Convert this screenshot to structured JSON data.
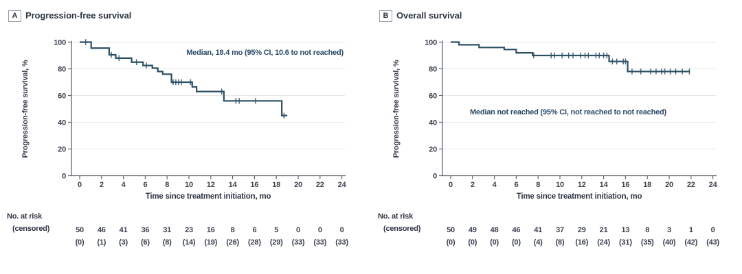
{
  "panels": [
    {
      "label": "A",
      "title": "Progression-free survival",
      "annotation": "Median, 18.4 mo (95% CI, 10.6 to not reached)",
      "x_axis_label": "Time since treatment initiation, mo",
      "y_axis_label": "Progression-free survival, %",
      "risk_header": [
        "No. at risk",
        "(censored)"
      ]
    },
    {
      "label": "B",
      "title": "Overall survival",
      "annotation": "Median not reached (95% CI, not reached to not reached)",
      "x_axis_label": "Time since treatment initiation, mo",
      "y_axis_label": "Progression-free survival, %",
      "risk_header": [
        "No. at risk",
        "(censored)"
      ]
    }
  ],
  "colors": {
    "curve": "#2b4f63",
    "text": "#39414e",
    "label_text": "#2e3643",
    "annotation_text": "#2b4a66",
    "grid": "#e6e6e6",
    "axis": "#5f656e",
    "panel_box_border": "#979da6",
    "background": "#ffffff"
  },
  "chart_data": [
    {
      "type": "line",
      "subtype": "kaplan-meier-step",
      "panel": "A",
      "title": "Progression-free survival",
      "annotation": "Median, 18.4 mo (95% CI, 10.6 to not reached)",
      "xlabel": "Time since treatment initiation, mo",
      "ylabel": "Progression-free survival, %",
      "xlim": [
        0,
        24
      ],
      "ylim": [
        0,
        100
      ],
      "xticks": [
        0,
        2,
        4,
        6,
        8,
        10,
        12,
        14,
        16,
        18,
        20,
        22,
        24
      ],
      "yticks": [
        0,
        20,
        40,
        60,
        80,
        100
      ],
      "grid": "horizontal",
      "legend": "none",
      "start": [
        0,
        100
      ],
      "steps": [
        [
          1.05,
          95.5
        ],
        [
          2.7,
          90.5
        ],
        [
          3.3,
          88
        ],
        [
          4.75,
          85
        ],
        [
          5.8,
          82.5
        ],
        [
          6.65,
          80.5
        ],
        [
          7.15,
          78
        ],
        [
          7.6,
          76
        ],
        [
          8.4,
          70
        ],
        [
          10.3,
          66.5
        ],
        [
          10.7,
          63
        ],
        [
          13.2,
          56
        ],
        [
          18.5,
          45
        ]
      ],
      "end_time": 19.0,
      "censor_marks": [
        [
          0.55,
          100
        ],
        [
          2.9,
          90.5
        ],
        [
          3.6,
          88
        ],
        [
          5.2,
          85
        ],
        [
          6.1,
          82.5
        ],
        [
          8.55,
          70
        ],
        [
          8.8,
          70
        ],
        [
          9.05,
          70
        ],
        [
          9.3,
          70
        ],
        [
          10.15,
          70
        ],
        [
          13.0,
          63
        ],
        [
          14.3,
          56
        ],
        [
          14.6,
          56
        ],
        [
          16.1,
          56
        ],
        [
          18.7,
          45
        ]
      ],
      "at_risk": [
        50,
        46,
        41,
        36,
        31,
        23,
        16,
        8,
        6,
        5,
        0,
        0,
        0
      ],
      "censored": [
        "(0)",
        "(1)",
        "(3)",
        "(6)",
        "(8)",
        "(14)",
        "(19)",
        "(26)",
        "(28)",
        "(29)",
        "(33)",
        "(33)",
        "(33)"
      ]
    },
    {
      "type": "line",
      "subtype": "kaplan-meier-step",
      "panel": "B",
      "title": "Overall survival",
      "annotation": "Median not reached (95% CI, not reached to not reached)",
      "xlabel": "Time since treatment initiation, mo",
      "ylabel": "Progression-free survival, %",
      "xlim": [
        0,
        24
      ],
      "ylim": [
        0,
        100
      ],
      "xticks": [
        0,
        2,
        4,
        6,
        8,
        10,
        12,
        14,
        16,
        18,
        20,
        22,
        24
      ],
      "yticks": [
        0,
        20,
        40,
        60,
        80,
        100
      ],
      "grid": "horizontal",
      "legend": "none",
      "start": [
        0,
        100
      ],
      "steps": [
        [
          0.76,
          98
        ],
        [
          2.6,
          96
        ],
        [
          4.9,
          94.5
        ],
        [
          6.0,
          92
        ],
        [
          7.5,
          90
        ],
        [
          14.5,
          85.5
        ],
        [
          16.2,
          78
        ]
      ],
      "end_time": 21.9,
      "censor_marks": [
        [
          7.6,
          90
        ],
        [
          9.2,
          90
        ],
        [
          9.5,
          90
        ],
        [
          10.2,
          90
        ],
        [
          10.8,
          90
        ],
        [
          11.2,
          90
        ],
        [
          11.9,
          90
        ],
        [
          12.3,
          90
        ],
        [
          12.6,
          90
        ],
        [
          13.3,
          90
        ],
        [
          13.6,
          90
        ],
        [
          14.0,
          90
        ],
        [
          14.3,
          90
        ],
        [
          14.8,
          85.5
        ],
        [
          15.2,
          85.5
        ],
        [
          15.8,
          85.5
        ],
        [
          16.0,
          85.5
        ],
        [
          16.6,
          78
        ],
        [
          17.4,
          78
        ],
        [
          18.3,
          78
        ],
        [
          18.8,
          78
        ],
        [
          19.3,
          78
        ],
        [
          19.6,
          78
        ],
        [
          20.1,
          78
        ],
        [
          20.6,
          78
        ],
        [
          21.2,
          78
        ],
        [
          21.85,
          78
        ]
      ],
      "at_risk": [
        50,
        49,
        48,
        46,
        41,
        37,
        29,
        21,
        13,
        8,
        3,
        1,
        0
      ],
      "censored": [
        "(0)",
        "(0)",
        "(0)",
        "(0)",
        "(4)",
        "(8)",
        "(16)",
        "(24)",
        "(31)",
        "(35)",
        "(40)",
        "(42)",
        "(43)"
      ]
    }
  ]
}
